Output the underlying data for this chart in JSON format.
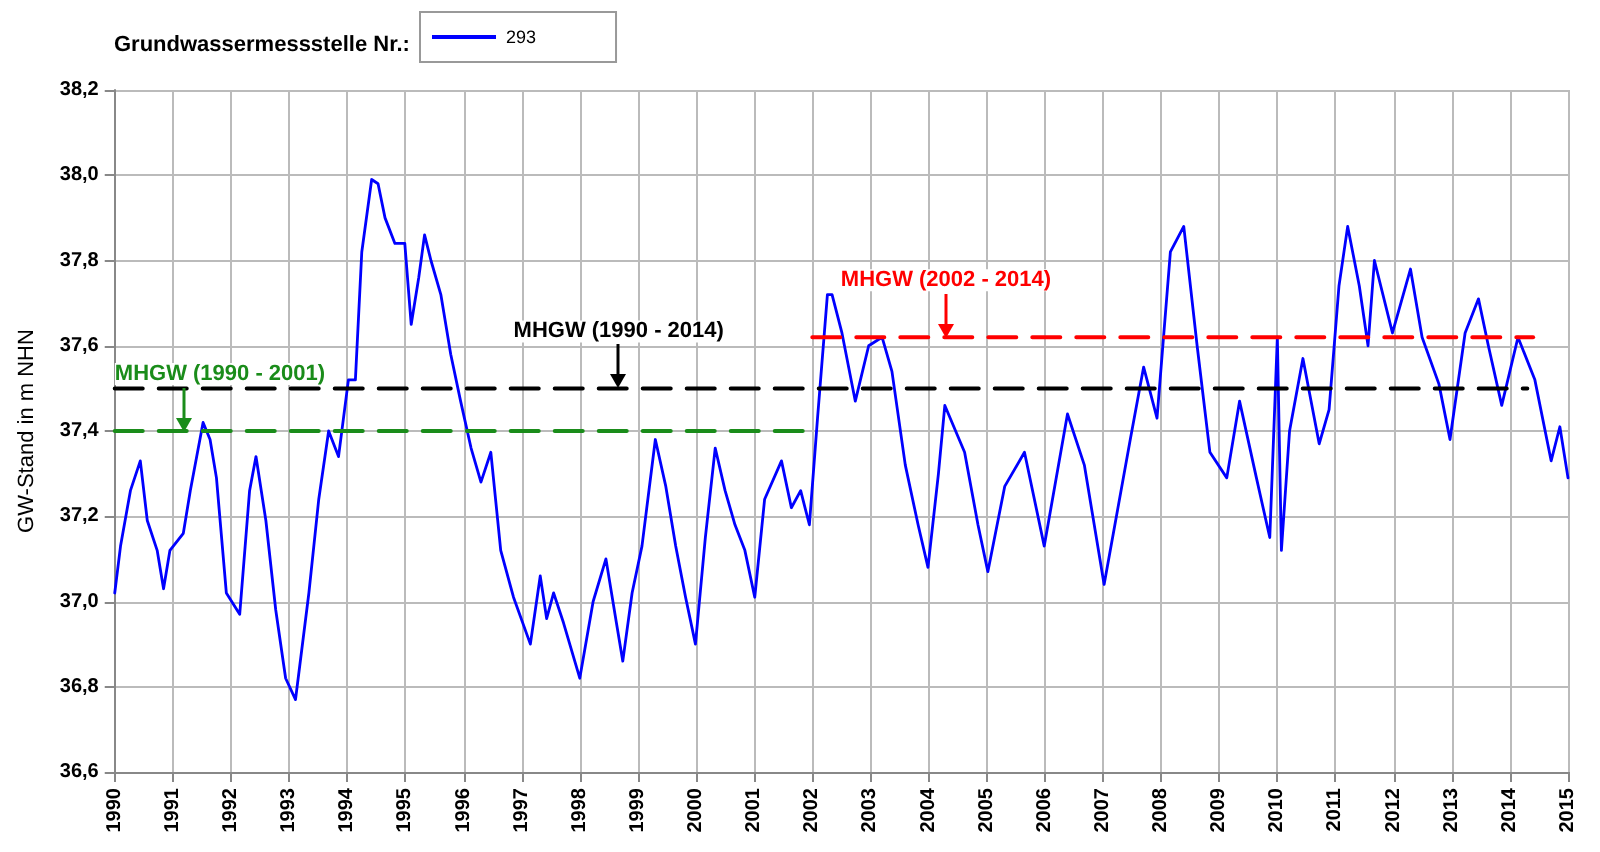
{
  "chart_data": {
    "type": "line",
    "legend_title": "Grundwassermessstelle Nr.:",
    "ylabel": "GW-Stand in m NHN",
    "legend": "top left",
    "grid": true,
    "marker": "none",
    "xlim": [
      1990,
      2015
    ],
    "xticks": [
      1990,
      1991,
      1992,
      1993,
      1994,
      1995,
      1996,
      1997,
      1998,
      1999,
      2000,
      2001,
      2002,
      2003,
      2004,
      2005,
      2006,
      2007,
      2008,
      2009,
      2010,
      2011,
      2012,
      2013,
      2014,
      2015
    ],
    "ylim": [
      36.6,
      38.2
    ],
    "yticks": [
      {
        "value": 36.6,
        "label": "36,6"
      },
      {
        "value": 36.8,
        "label": "36,8"
      },
      {
        "value": 37.0,
        "label": "37,0"
      },
      {
        "value": 37.2,
        "label": "37,2"
      },
      {
        "value": 37.4,
        "label": "37,4"
      },
      {
        "value": 37.6,
        "label": "37,6"
      },
      {
        "value": 37.8,
        "label": "37,8"
      },
      {
        "value": 38.0,
        "label": "38,0"
      },
      {
        "value": 38.2,
        "label": "38,2"
      }
    ],
    "series": [
      {
        "name": "293",
        "color": "#0000ff",
        "line_style": "solid",
        "x": [
          1990.0,
          1990.1,
          1990.27,
          1990.44,
          1990.56,
          1990.73,
          1990.84,
          1990.95,
          1991.18,
          1991.3,
          1991.52,
          1991.64,
          1991.75,
          1991.92,
          1992.15,
          1992.32,
          1992.43,
          1992.6,
          1992.77,
          1992.94,
          1993.11,
          1993.34,
          1993.51,
          1993.68,
          1993.85,
          1994.02,
          1994.14,
          1994.25,
          1994.42,
          1994.53,
          1994.65,
          1994.82,
          1994.99,
          1995.1,
          1995.23,
          1995.33,
          1995.44,
          1995.61,
          1995.78,
          1995.95,
          1996.13,
          1996.3,
          1996.47,
          1996.64,
          1996.86,
          1997.15,
          1997.32,
          1997.43,
          1997.55,
          1997.72,
          1998.0,
          1998.23,
          1998.45,
          1998.63,
          1998.74,
          1998.9,
          1999.07,
          1999.3,
          1999.48,
          1999.65,
          1999.82,
          1999.99,
          2000.16,
          2000.33,
          2000.5,
          2000.67,
          2000.84,
          2001.01,
          2001.18,
          2001.47,
          2001.64,
          2001.8,
          2001.95,
          2002.09,
          2002.26,
          2002.34,
          2002.51,
          2002.74,
          2002.97,
          2003.2,
          2003.37,
          2003.6,
          2003.82,
          2003.99,
          2004.17,
          2004.28,
          2004.62,
          2004.85,
          2005.02,
          2005.31,
          2005.65,
          2005.99,
          2006.39,
          2006.68,
          2007.02,
          2007.47,
          2007.7,
          2007.93,
          2008.16,
          2008.39,
          2008.62,
          2008.84,
          2009.13,
          2009.35,
          2009.64,
          2009.87,
          2010.0,
          2010.07,
          2010.21,
          2010.44,
          2010.72,
          2010.89,
          2011.06,
          2011.21,
          2011.41,
          2011.56,
          2011.67,
          2011.98,
          2012.29,
          2012.49,
          2012.78,
          2012.97,
          2013.23,
          2013.46,
          2013.63,
          2013.86,
          2014.14,
          2014.43,
          2014.71,
          2014.86,
          2015.0
        ],
        "values": [
          37.02,
          37.13,
          37.26,
          37.33,
          37.19,
          37.12,
          37.03,
          37.12,
          37.16,
          37.26,
          37.42,
          37.38,
          37.29,
          37.02,
          36.97,
          37.26,
          37.34,
          37.19,
          36.98,
          36.82,
          36.77,
          37.02,
          37.24,
          37.4,
          37.34,
          37.52,
          37.52,
          37.82,
          37.99,
          37.98,
          37.9,
          37.84,
          37.84,
          37.65,
          37.76,
          37.86,
          37.8,
          37.72,
          37.58,
          37.47,
          37.36,
          37.28,
          37.35,
          37.12,
          37.01,
          36.9,
          37.06,
          36.96,
          37.02,
          36.95,
          36.82,
          37.0,
          37.1,
          36.95,
          36.86,
          37.02,
          37.13,
          37.38,
          37.27,
          37.13,
          37.01,
          36.9,
          37.15,
          37.36,
          37.26,
          37.18,
          37.12,
          37.01,
          37.24,
          37.33,
          37.22,
          37.26,
          37.18,
          37.43,
          37.72,
          37.72,
          37.63,
          37.47,
          37.6,
          37.62,
          37.54,
          37.32,
          37.18,
          37.08,
          37.3,
          37.46,
          37.35,
          37.18,
          37.07,
          37.27,
          37.35,
          37.13,
          37.44,
          37.32,
          37.04,
          37.38,
          37.55,
          37.43,
          37.82,
          37.88,
          37.6,
          37.35,
          37.29,
          37.47,
          37.29,
          37.15,
          37.62,
          37.12,
          37.4,
          37.57,
          37.37,
          37.45,
          37.74,
          37.88,
          37.74,
          37.6,
          37.8,
          37.63,
          37.78,
          37.62,
          37.51,
          37.38,
          37.63,
          37.71,
          37.6,
          37.46,
          37.62,
          37.52,
          37.33,
          37.41,
          37.29
        ]
      },
      {
        "color": "#000000",
        "line_style": "dashed",
        "x": [
          1990,
          2014.3
        ],
        "values": [
          37.5,
          37.5
        ]
      },
      {
        "color": "#1a8c1a",
        "line_style": "dashed",
        "x": [
          1990,
          2001.9
        ],
        "values": [
          37.4,
          37.4
        ]
      },
      {
        "color": "#ff0000",
        "line_style": "dashed",
        "x": [
          2002,
          2014.4
        ],
        "values": [
          37.62,
          37.62
        ]
      }
    ],
    "annotations": [
      {
        "text": "MHGW (1990 - 2014)",
        "x": 1998.67,
        "y": 37.5
      },
      {
        "text": "MHGW (1990 - 2001)",
        "x": 1991.2,
        "y": 37.4
      },
      {
        "text": "MHGW (2002 - 2014)",
        "x": 2004.3,
        "y": 37.62
      }
    ]
  }
}
